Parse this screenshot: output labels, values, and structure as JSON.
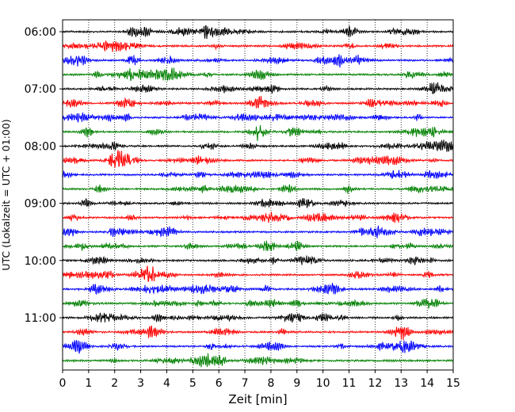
{
  "chart_data": {
    "type": "line",
    "xlabel": "Zeit  [min]",
    "ylabel": "UTC (Lokalzeit = UTC + 01:00)",
    "xlim": [
      0,
      15
    ],
    "x_ticks": [
      "0",
      "1",
      "2",
      "3",
      "4",
      "5",
      "6",
      "7",
      "8",
      "9",
      "10",
      "11",
      "12",
      "13",
      "14",
      "15"
    ],
    "y_ticks": [
      "06:00",
      "07:00",
      "08:00",
      "09:00",
      "10:00",
      "11:00"
    ],
    "row_interval_minutes": 15,
    "rows": [
      {
        "start": "06:00",
        "color": "#000000"
      },
      {
        "start": "06:15",
        "color": "#ff0000"
      },
      {
        "start": "06:30",
        "color": "#0000ff"
      },
      {
        "start": "06:45",
        "color": "#008000"
      },
      {
        "start": "07:00",
        "color": "#000000"
      },
      {
        "start": "07:15",
        "color": "#ff0000"
      },
      {
        "start": "07:30",
        "color": "#0000ff"
      },
      {
        "start": "07:45",
        "color": "#008000"
      },
      {
        "start": "08:00",
        "color": "#000000"
      },
      {
        "start": "08:15",
        "color": "#ff0000"
      },
      {
        "start": "08:30",
        "color": "#0000ff"
      },
      {
        "start": "08:45",
        "color": "#008000"
      },
      {
        "start": "09:00",
        "color": "#000000"
      },
      {
        "start": "09:15",
        "color": "#ff0000"
      },
      {
        "start": "09:30",
        "color": "#0000ff"
      },
      {
        "start": "09:45",
        "color": "#008000"
      },
      {
        "start": "10:00",
        "color": "#000000"
      },
      {
        "start": "10:15",
        "color": "#ff0000"
      },
      {
        "start": "10:30",
        "color": "#0000ff"
      },
      {
        "start": "10:45",
        "color": "#008000"
      },
      {
        "start": "11:00",
        "color": "#000000"
      },
      {
        "start": "11:15",
        "color": "#ff0000"
      },
      {
        "start": "11:30",
        "color": "#0000ff"
      },
      {
        "start": "11:45",
        "color": "#008000"
      }
    ],
    "vertical_grid": "dotted",
    "horizontal_grid": false,
    "legend": "none"
  }
}
